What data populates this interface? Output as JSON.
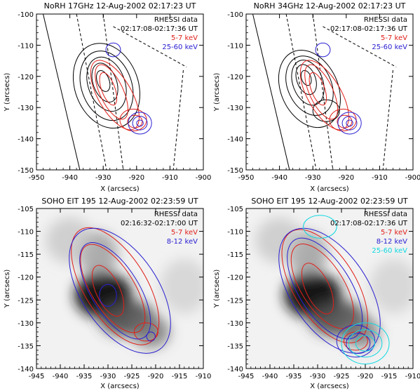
{
  "figure": {
    "panels": [
      {
        "title": "NoRH 17GHz 12-Aug-2002 02:17:23 UT",
        "xlabel": "X (arcsecs)",
        "ylabel": "Y (arcsecs)",
        "xlim": [
          -950,
          -900
        ],
        "ylim": [
          -150,
          -100
        ],
        "xticks": [
          -950,
          -940,
          -930,
          -920,
          -910,
          -900
        ],
        "yticks": [
          -150,
          -140,
          -130,
          -120,
          -110,
          -100
        ],
        "legend_title": "RHESSI data",
        "legend_time": "02:17:08-02:17:36 UT",
        "legend": [
          {
            "label": "5-7 keV",
            "color": "#e0201a"
          },
          {
            "label": "25-60 keV",
            "color": "#2a20d0"
          }
        ],
        "background": "none"
      },
      {
        "title": "NoRH 34GHz 12-Aug-2002 02:17:23 UT",
        "xlabel": "X (arcsecs)",
        "ylabel": "Y (arcsecs)",
        "xlim": [
          -950,
          -900
        ],
        "ylim": [
          -150,
          -100
        ],
        "xticks": [
          -950,
          -940,
          -930,
          -920,
          -910,
          -900
        ],
        "yticks": [
          -150,
          -140,
          -130,
          -120,
          -110,
          -100
        ],
        "legend_title": "RHESSI data",
        "legend_time": "02:17:08-02:17:36 UT",
        "legend": [
          {
            "label": "5-7 keV",
            "color": "#e0201a"
          },
          {
            "label": "25-60 keV",
            "color": "#2a20d0"
          }
        ],
        "background": "none"
      },
      {
        "title": "SOHO EIT 195 12-Aug-2002 02:23:59 UT",
        "xlabel": "X (arcsecs)",
        "ylabel": "Y (arcsecs)",
        "xlim": [
          -945,
          -910
        ],
        "ylim": [
          -140,
          -105
        ],
        "xticks": [
          -945,
          -940,
          -935,
          -930,
          -925,
          -920,
          -915,
          -910
        ],
        "yticks": [
          -140,
          -135,
          -130,
          -125,
          -120,
          -115,
          -110,
          -105
        ],
        "legend_title": "RHESSI data",
        "legend_time": "02:16:32-02:17:00 UT",
        "legend": [
          {
            "label": "5-7 keV",
            "color": "#e0201a"
          },
          {
            "label": "8-12 keV",
            "color": "#2a20d0"
          }
        ],
        "background": "grayscale-image"
      },
      {
        "title": "SOHO EIT 195 12-Aug-2002 02:23:59 UT",
        "xlabel": "X (arcsecs)",
        "ylabel": "Y (arcsecs)",
        "xlim": [
          -945,
          -910
        ],
        "ylim": [
          -140,
          -105
        ],
        "xticks": [
          -945,
          -940,
          -935,
          -930,
          -925,
          -920,
          -915,
          -910
        ],
        "yticks": [
          -140,
          -135,
          -130,
          -125,
          -120,
          -115,
          -110,
          -105
        ],
        "legend_title": "RHESSI data",
        "legend_time": "02:17:08-02:17:36 UT",
        "legend": [
          {
            "label": "5-7 keV",
            "color": "#e0201a"
          },
          {
            "label": "8-12 keV",
            "color": "#2a20d0"
          },
          {
            "label": "25-60 keV",
            "color": "#10d8e0"
          }
        ],
        "background": "grayscale-image"
      }
    ]
  },
  "chart_data": [
    {
      "type": "contour",
      "title": "NoRH 17GHz 12-Aug-2002 02:17:23 UT",
      "xlabel": "X (arcsecs)",
      "ylabel": "Y (arcsecs)",
      "xlim": [
        -950,
        -900
      ],
      "ylim": [
        -150,
        -100
      ],
      "contours": [
        {
          "name": "NoRH 17GHz",
          "color": "#000000",
          "style": "solid",
          "levels": [
            {
              "cx": -929,
              "cy": -123,
              "rx": 9.5,
              "ry": 14,
              "rot": -20
            },
            {
              "cx": -929,
              "cy": -123,
              "rx": 7.5,
              "ry": 11.5,
              "rot": -20
            },
            {
              "cx": -929,
              "cy": -122.5,
              "rx": 5.5,
              "ry": 9,
              "rot": -20
            },
            {
              "cx": -929.5,
              "cy": -122,
              "rx": 3.5,
              "ry": 6.5,
              "rot": -20
            },
            {
              "cx": -930,
              "cy": -121.5,
              "rx": 1.8,
              "ry": 3.5,
              "rot": -20
            }
          ]
        },
        {
          "name": "5-7 keV",
          "color": "#e0201a",
          "style": "solid",
          "levels": [
            {
              "cx": -926.5,
              "cy": -126,
              "rx": 5,
              "ry": 12.5,
              "rot": -30
            },
            {
              "cx": -927.5,
              "cy": -125,
              "rx": 3.5,
              "ry": 9.5,
              "rot": -25
            },
            {
              "cx": -928.5,
              "cy": -124,
              "rx": 2,
              "ry": 5.5,
              "rot": -20
            },
            {
              "cx": -921,
              "cy": -134,
              "rx": 4,
              "ry": 3.5,
              "rot": 0
            },
            {
              "cx": -920.5,
              "cy": -134.5,
              "rx": 2.2,
              "ry": 2,
              "rot": 0
            }
          ]
        },
        {
          "name": "25-60 keV",
          "color": "#2a20d0",
          "style": "solid",
          "levels": [
            {
              "cx": -919,
              "cy": -135,
              "rx": 3.5,
              "ry": 3.5,
              "rot": 0
            },
            {
              "cx": -919,
              "cy": -135,
              "rx": 2.2,
              "ry": 2.2,
              "rot": 0
            },
            {
              "cx": -919,
              "cy": -135,
              "rx": 1,
              "ry": 1,
              "rot": 0
            },
            {
              "cx": -927,
              "cy": -111.5,
              "rx": 2.2,
              "ry": 2.2,
              "rot": 0
            }
          ]
        }
      ],
      "lines": [
        {
          "style": "solid",
          "points": [
            [
              -948,
              -100
            ],
            [
              -937,
              -150
            ]
          ]
        },
        {
          "style": "dashed",
          "points": [
            [
              -938,
              -100
            ],
            [
              -929,
              -150
            ]
          ]
        },
        {
          "style": "dashed",
          "points": [
            [
              -930,
              -100
            ],
            [
              -924,
              -150
            ]
          ]
        },
        {
          "style": "dashed",
          "points": [
            [
              -927,
              -104
            ],
            [
              -905,
              -117
            ]
          ]
        },
        {
          "style": "dashed",
          "points": [
            [
              -906,
              -118
            ],
            [
              -909,
              -150
            ]
          ]
        }
      ]
    },
    {
      "type": "contour",
      "title": "NoRH 34GHz 12-Aug-2002 02:17:23 UT",
      "xlabel": "X (arcsecs)",
      "ylabel": "Y (arcsecs)",
      "xlim": [
        -950,
        -900
      ],
      "ylim": [
        -150,
        -100
      ],
      "contours": [
        {
          "name": "NoRH 34GHz",
          "color": "#000000",
          "style": "solid",
          "levels": [
            {
              "cx": -931,
              "cy": -124,
              "rx": 8.5,
              "ry": 13,
              "rot": -25
            },
            {
              "cx": -931,
              "cy": -123,
              "rx": 6.5,
              "ry": 10,
              "rot": -25
            },
            {
              "cx": -931.5,
              "cy": -122,
              "rx": 4.5,
              "ry": 7.5,
              "rot": -20
            },
            {
              "cx": -932,
              "cy": -121,
              "rx": 2.8,
              "ry": 5,
              "rot": -20
            },
            {
              "cx": -932,
              "cy": -120.5,
              "rx": 1.4,
              "ry": 2.5,
              "rot": -20
            },
            {
              "cx": -926,
              "cy": -131,
              "rx": 4,
              "ry": 3.5,
              "rot": 0
            }
          ]
        },
        {
          "name": "5-7 keV",
          "color": "#e0201a",
          "style": "solid",
          "levels": [
            {
              "cx": -926.5,
              "cy": -126,
              "rx": 5,
              "ry": 12.5,
              "rot": -30
            },
            {
              "cx": -927.5,
              "cy": -125,
              "rx": 3.5,
              "ry": 9.5,
              "rot": -25
            },
            {
              "cx": -928.5,
              "cy": -124,
              "rx": 2,
              "ry": 5.5,
              "rot": -20
            },
            {
              "cx": -921,
              "cy": -134,
              "rx": 4,
              "ry": 3.5,
              "rot": 0
            },
            {
              "cx": -920.5,
              "cy": -134.5,
              "rx": 2.2,
              "ry": 2,
              "rot": 0
            }
          ]
        },
        {
          "name": "25-60 keV",
          "color": "#2a20d0",
          "style": "solid",
          "levels": [
            {
              "cx": -919,
              "cy": -135,
              "rx": 3.5,
              "ry": 3.5,
              "rot": 0
            },
            {
              "cx": -919,
              "cy": -135,
              "rx": 2.2,
              "ry": 2.2,
              "rot": 0
            },
            {
              "cx": -919,
              "cy": -135,
              "rx": 1,
              "ry": 1,
              "rot": 0
            },
            {
              "cx": -927,
              "cy": -111.5,
              "rx": 2.2,
              "ry": 2.2,
              "rot": 0
            }
          ]
        }
      ],
      "lines": [
        {
          "style": "solid",
          "points": [
            [
              -948,
              -100
            ],
            [
              -937,
              -150
            ]
          ]
        },
        {
          "style": "dashed",
          "points": [
            [
              -938,
              -100
            ],
            [
              -929,
              -150
            ]
          ]
        },
        {
          "style": "dashed",
          "points": [
            [
              -930,
              -100
            ],
            [
              -924,
              -150
            ]
          ]
        },
        {
          "style": "dashed",
          "points": [
            [
              -927,
              -104
            ],
            [
              -905,
              -117
            ]
          ]
        },
        {
          "style": "dashed",
          "points": [
            [
              -906,
              -118
            ],
            [
              -909,
              -150
            ]
          ]
        }
      ]
    },
    {
      "type": "contour",
      "title": "SOHO EIT 195 12-Aug-2002 02:23:59 UT",
      "xlabel": "X (arcsecs)",
      "ylabel": "Y (arcsecs)",
      "xlim": [
        -945,
        -910
      ],
      "ylim": [
        -140,
        -105
      ],
      "image": [
        {
          "cx": -931,
          "cy": -124,
          "rx": 6,
          "ry": 5,
          "weight": 1.0
        },
        {
          "cx": -926,
          "cy": -129,
          "rx": 6,
          "ry": 4,
          "weight": 0.75
        },
        {
          "cx": -921,
          "cy": -132,
          "rx": 4,
          "ry": 3.5,
          "weight": 0.55
        },
        {
          "cx": -932,
          "cy": -115,
          "rx": 4,
          "ry": 5,
          "weight": 0.4
        },
        {
          "cx": -938,
          "cy": -112,
          "rx": 5,
          "ry": 5,
          "weight": 0.2
        },
        {
          "cx": -914,
          "cy": -122,
          "rx": 5,
          "ry": 6,
          "weight": 0.15
        }
      ],
      "contours": [
        {
          "name": "5-7 keV",
          "color": "#e0201a",
          "style": "solid",
          "levels": [
            {
              "cx": -928.5,
              "cy": -122,
              "rx": 6.5,
              "ry": 14.5,
              "rot": -32
            },
            {
              "cx": -929,
              "cy": -122.5,
              "rx": 4.5,
              "ry": 11,
              "rot": -32
            },
            {
              "cx": -930,
              "cy": -123,
              "rx": 2.5,
              "ry": 6,
              "rot": -25
            },
            {
              "cx": -922,
              "cy": -132,
              "rx": 2.5,
              "ry": 2,
              "rot": 0
            }
          ]
        },
        {
          "name": "8-12 keV",
          "color": "#2a20d0",
          "style": "solid",
          "levels": [
            {
              "cx": -927.5,
              "cy": -123,
              "rx": 8,
              "ry": 15.5,
              "rot": -34
            },
            {
              "cx": -928.5,
              "cy": -123,
              "rx": 5,
              "ry": 12,
              "rot": -32
            },
            {
              "cx": -930,
              "cy": -124,
              "rx": 1.8,
              "ry": 2.4,
              "rot": 0
            },
            {
              "cx": -921,
              "cy": -133,
              "rx": 0.9,
              "ry": 1,
              "rot": 0
            }
          ]
        }
      ]
    },
    {
      "type": "contour",
      "title": "SOHO EIT 195 12-Aug-2002 02:23:59 UT",
      "xlabel": "X (arcsecs)",
      "ylabel": "Y (arcsecs)",
      "xlim": [
        -945,
        -910
      ],
      "ylim": [
        -140,
        -105
      ],
      "image": [
        {
          "cx": -931,
          "cy": -124,
          "rx": 6,
          "ry": 5,
          "weight": 1.0
        },
        {
          "cx": -926,
          "cy": -129,
          "rx": 6,
          "ry": 4,
          "weight": 0.75
        },
        {
          "cx": -921,
          "cy": -132,
          "rx": 4,
          "ry": 3.5,
          "weight": 0.55
        },
        {
          "cx": -932,
          "cy": -115,
          "rx": 4,
          "ry": 5,
          "weight": 0.4
        },
        {
          "cx": -938,
          "cy": -112,
          "rx": 5,
          "ry": 5,
          "weight": 0.2
        },
        {
          "cx": -914,
          "cy": -122,
          "rx": 5,
          "ry": 6,
          "weight": 0.15
        }
      ],
      "contours": [
        {
          "name": "5-7 keV",
          "color": "#e0201a",
          "style": "solid",
          "levels": [
            {
              "cx": -928.5,
              "cy": -122,
              "rx": 6.5,
              "ry": 14,
              "rot": -32
            },
            {
              "cx": -929,
              "cy": -122,
              "rx": 4.5,
              "ry": 10.5,
              "rot": -32
            },
            {
              "cx": -930,
              "cy": -122.5,
              "rx": 2.5,
              "ry": 6,
              "rot": -25
            },
            {
              "cx": -922,
              "cy": -134,
              "rx": 2.5,
              "ry": 2,
              "rot": 0
            }
          ]
        },
        {
          "name": "8-12 keV",
          "color": "#2a20d0",
          "style": "solid",
          "levels": [
            {
              "cx": -927.5,
              "cy": -123,
              "rx": 8,
              "ry": 15.5,
              "rot": -34
            },
            {
              "cx": -928.5,
              "cy": -122.5,
              "rx": 5.5,
              "ry": 12.5,
              "rot": -32
            },
            {
              "cx": -922,
              "cy": -134,
              "rx": 4,
              "ry": 3.5,
              "rot": 0
            },
            {
              "cx": -921.5,
              "cy": -134.5,
              "rx": 2.5,
              "ry": 2.2,
              "rot": 0
            }
          ]
        },
        {
          "name": "25-60 keV",
          "color": "#10d8e0",
          "style": "solid",
          "levels": [
            {
              "cx": -920,
              "cy": -134.5,
              "rx": 5,
              "ry": 4.5,
              "rot": 0
            },
            {
              "cx": -920,
              "cy": -134.5,
              "rx": 3.5,
              "ry": 3,
              "rot": 0
            },
            {
              "cx": -920,
              "cy": -134.5,
              "rx": 2,
              "ry": 1.7,
              "rot": 0
            },
            {
              "cx": -929.5,
              "cy": -109,
              "rx": 3.5,
              "ry": 2.5,
              "rot": 0
            }
          ]
        }
      ]
    }
  ]
}
